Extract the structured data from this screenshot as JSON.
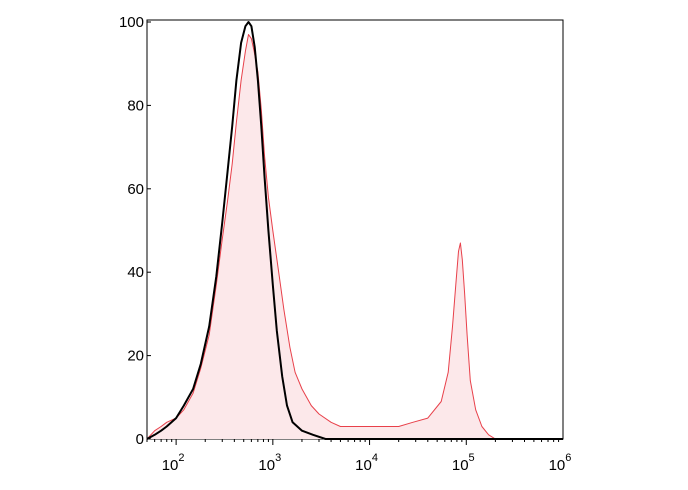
{
  "chart_data": {
    "type": "area",
    "title": "",
    "xlabel": "",
    "ylabel": "",
    "x_scale": "log",
    "xlim": [
      50,
      1000000
    ],
    "ylim": [
      0,
      100
    ],
    "y_ticks": [
      0,
      20,
      40,
      60,
      80,
      100
    ],
    "x_ticks": [
      {
        "value": 100,
        "base": "10",
        "exp": "2"
      },
      {
        "value": 1000,
        "base": "10",
        "exp": "3"
      },
      {
        "value": 10000,
        "base": "10",
        "exp": "4"
      },
      {
        "value": 100000,
        "base": "10",
        "exp": "5"
      },
      {
        "value": 1000000,
        "base": "10",
        "exp": "6"
      }
    ],
    "grid": false,
    "legend": "none",
    "series": [
      {
        "color": "#e8404a",
        "fill": "#fce8ea",
        "points": [
          [
            50,
            0
          ],
          [
            60,
            2
          ],
          [
            70,
            3
          ],
          [
            80,
            4
          ],
          [
            100,
            5
          ],
          [
            120,
            7
          ],
          [
            150,
            11
          ],
          [
            180,
            17
          ],
          [
            220,
            25
          ],
          [
            260,
            37
          ],
          [
            300,
            48
          ],
          [
            340,
            57
          ],
          [
            380,
            66
          ],
          [
            420,
            76
          ],
          [
            470,
            86
          ],
          [
            520,
            93
          ],
          [
            560,
            97
          ],
          [
            600,
            96
          ],
          [
            640,
            93
          ],
          [
            700,
            88
          ],
          [
            760,
            79
          ],
          [
            820,
            68
          ],
          [
            900,
            58
          ],
          [
            1000,
            50
          ],
          [
            1150,
            40
          ],
          [
            1300,
            31
          ],
          [
            1500,
            22
          ],
          [
            1700,
            16
          ],
          [
            2000,
            12
          ],
          [
            2500,
            8
          ],
          [
            3000,
            6
          ],
          [
            4000,
            4
          ],
          [
            5000,
            3
          ],
          [
            7000,
            3
          ],
          [
            10000,
            3
          ],
          [
            14000,
            3
          ],
          [
            20000,
            3
          ],
          [
            28000,
            4
          ],
          [
            40000,
            5
          ],
          [
            55000,
            9
          ],
          [
            65000,
            16
          ],
          [
            72000,
            27
          ],
          [
            78000,
            37
          ],
          [
            83000,
            45
          ],
          [
            87000,
            47
          ],
          [
            91000,
            43
          ],
          [
            96000,
            35
          ],
          [
            102000,
            25
          ],
          [
            110000,
            14
          ],
          [
            125000,
            7
          ],
          [
            145000,
            3
          ],
          [
            170000,
            1
          ],
          [
            200000,
            0
          ],
          [
            1000000,
            0
          ]
        ]
      },
      {
        "color": "#000000",
        "points": [
          [
            50,
            0
          ],
          [
            60,
            1
          ],
          [
            70,
            2
          ],
          [
            80,
            3
          ],
          [
            100,
            5
          ],
          [
            120,
            8
          ],
          [
            150,
            12
          ],
          [
            180,
            18
          ],
          [
            220,
            27
          ],
          [
            260,
            39
          ],
          [
            300,
            52
          ],
          [
            340,
            64
          ],
          [
            380,
            75
          ],
          [
            420,
            86
          ],
          [
            470,
            95
          ],
          [
            520,
            99
          ],
          [
            560,
            100
          ],
          [
            600,
            99
          ],
          [
            650,
            94
          ],
          [
            700,
            86
          ],
          [
            760,
            75
          ],
          [
            820,
            63
          ],
          [
            900,
            50
          ],
          [
            1000,
            37
          ],
          [
            1100,
            26
          ],
          [
            1250,
            15
          ],
          [
            1400,
            8
          ],
          [
            1600,
            4
          ],
          [
            2000,
            2
          ],
          [
            2600,
            1
          ],
          [
            3500,
            0
          ],
          [
            1000000,
            0
          ]
        ]
      }
    ]
  }
}
